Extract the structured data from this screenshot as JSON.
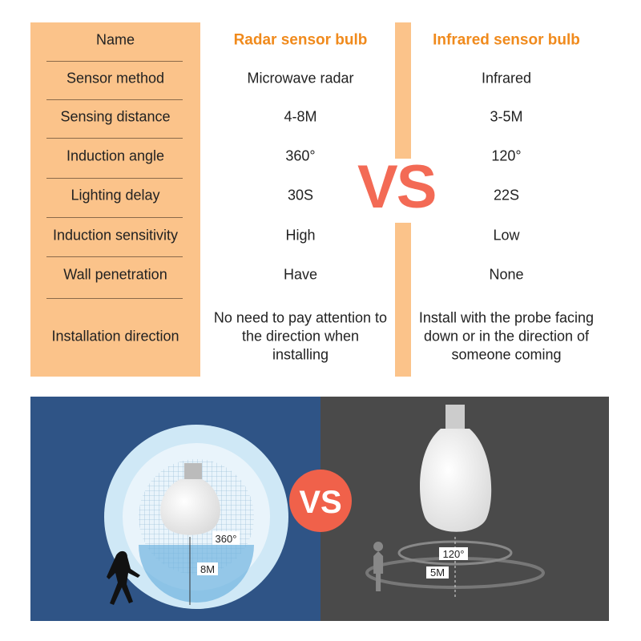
{
  "table": {
    "header": [
      "Name",
      "Radar sensor bulb",
      "Infrared sensor bulb"
    ],
    "rows": [
      [
        "Sensor method",
        "Microwave radar",
        "Infrared"
      ],
      [
        "Sensing distance",
        "4-8M",
        "3-5M"
      ],
      [
        "Induction angle",
        "360°",
        "120°"
      ],
      [
        "Lighting delay",
        "30S",
        "22S"
      ],
      [
        "Induction sensitivity",
        "High",
        "Low"
      ],
      [
        "Wall penetration",
        "Have",
        "None"
      ],
      [
        "Installation direction",
        "No need to pay attention to the direction when installing",
        "Install with the probe facing down or in the direction of someone coming"
      ]
    ]
  },
  "vs_label": "VS",
  "badge": "VS",
  "radar_labels": [
    "360°",
    "8M"
  ],
  "infrared_labels": [
    "120°",
    "5M"
  ]
}
